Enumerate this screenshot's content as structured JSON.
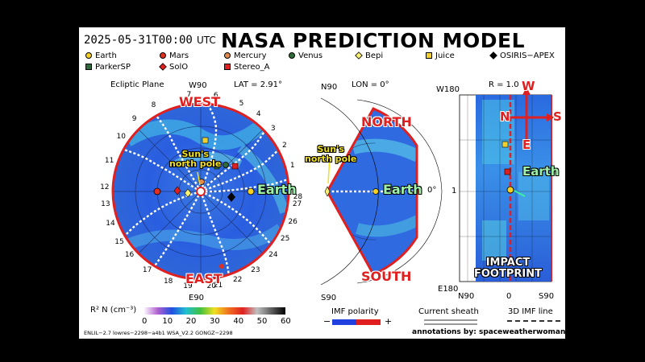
{
  "header": {
    "timestamp": "2025-05-31T00:00",
    "tz": "UTC",
    "title": "NASA PREDICTION MODEL"
  },
  "legend": [
    {
      "name": "Earth",
      "color": "#f5d020",
      "shape": "circle"
    },
    {
      "name": "Mars",
      "color": "#e03020",
      "shape": "circle"
    },
    {
      "name": "Mercury",
      "color": "#e08a50",
      "shape": "circle"
    },
    {
      "name": "Venus",
      "color": "#2f6b3a",
      "shape": "circle"
    },
    {
      "name": "Bepi",
      "color": "#f7f070",
      "shape": "diamond"
    },
    {
      "name": "Juice",
      "color": "#f0d030",
      "shape": "square"
    },
    {
      "name": "OSIRIS−APEX",
      "color": "#000000",
      "shape": "diamond"
    },
    {
      "name": "ParkerSP",
      "color": "#2f6b3a",
      "shape": "square"
    },
    {
      "name": "SolO",
      "color": "#e02020",
      "shape": "diamond"
    },
    {
      "name": "Stereo_A",
      "color": "#e02020",
      "shape": "square"
    }
  ],
  "panel_left": {
    "title": "Ecliptic Plane",
    "top_label": "W90",
    "lat": "LAT = 2.91°",
    "bottom_label": "E90",
    "right_label": "27",
    "ticks": [
      "1",
      "2",
      "3",
      "4",
      "5",
      "6",
      "7",
      "8",
      "9",
      "10",
      "11",
      "12",
      "13",
      "14",
      "15",
      "16",
      "17",
      "18",
      "19",
      "20",
      "21",
      "22",
      "23",
      "24",
      "25",
      "26",
      "27",
      "28"
    ]
  },
  "panel_mid": {
    "top_left": "N90",
    "lon": "LON = 0°",
    "zero": "0°",
    "bottom_left": "S90"
  },
  "panel_right": {
    "top_left": "W180",
    "r_label": "R = 1.0",
    "one": "1",
    "bottom_left": "E180",
    "bottom_n": "N90",
    "bottom_zero": "0",
    "bottom_s": "S90"
  },
  "annotations": {
    "west": "WEST",
    "east": "EAST",
    "north": "NORTH",
    "south": "SOUTH",
    "earth": "Earth",
    "suns_pole": [
      "Sun's",
      "north pole"
    ],
    "impact": [
      "IMPACT",
      "FOOTPRINT"
    ],
    "compass": {
      "w": "W",
      "n": "N",
      "s": "S",
      "e": "E"
    }
  },
  "colorbar": {
    "label": "R² N (cm⁻³)",
    "ticks": [
      "0",
      "10",
      "20",
      "30",
      "40",
      "50",
      "60"
    ],
    "stops": [
      "#ffffff",
      "#b060d0",
      "#2050e0",
      "#20c0d0",
      "#40c040",
      "#f0e020",
      "#f07020",
      "#e02020",
      "#c0c0c0",
      "#606060",
      "#000000"
    ]
  },
  "imf": {
    "label": "IMF polarity",
    "minus": "−",
    "plus": "+",
    "neg_color": "#2040e0",
    "pos_color": "#e02020"
  },
  "sheath": {
    "label": "Current sheath"
  },
  "imf_line": {
    "label": "3D IMF line"
  },
  "footer": {
    "model": "ENLIL−2.7 lowres−2298−a4b1 WSA_V2.2 GONGZ−2298",
    "credit": "annotations by: spaceweatherwoman.com"
  }
}
